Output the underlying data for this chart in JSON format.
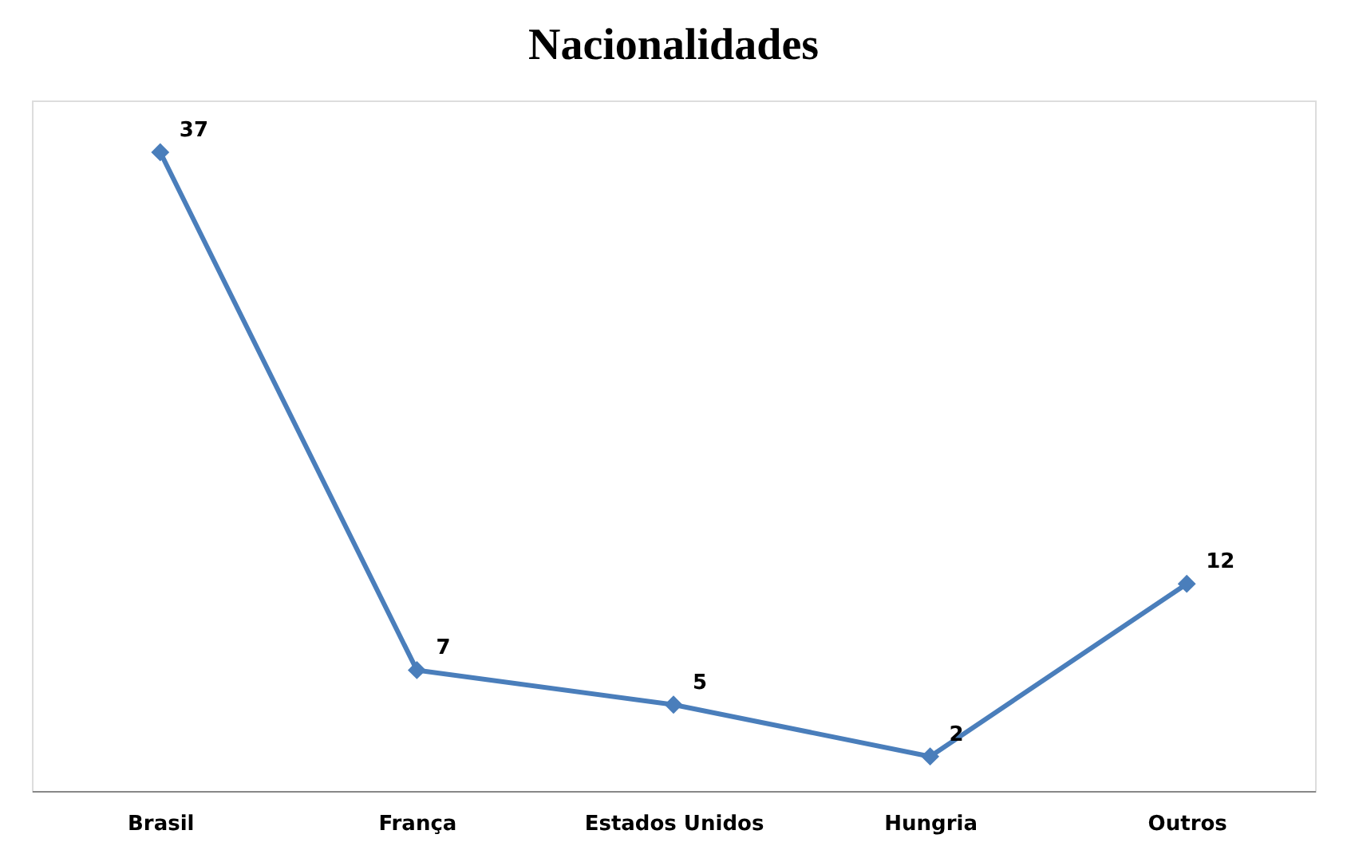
{
  "chart_data": {
    "type": "line",
    "title": "Nacionalidades",
    "categories": [
      "Brasil",
      "França",
      "Estados Unidos",
      "Hungria",
      "Outros"
    ],
    "series": [
      {
        "color": "#4a7ebb",
        "values": [
          37,
          7,
          5,
          2,
          12
        ]
      }
    ],
    "data_labels": true,
    "marker": "diamond",
    "line_style": "solid",
    "grid": false,
    "tick_labels": "x"
  }
}
